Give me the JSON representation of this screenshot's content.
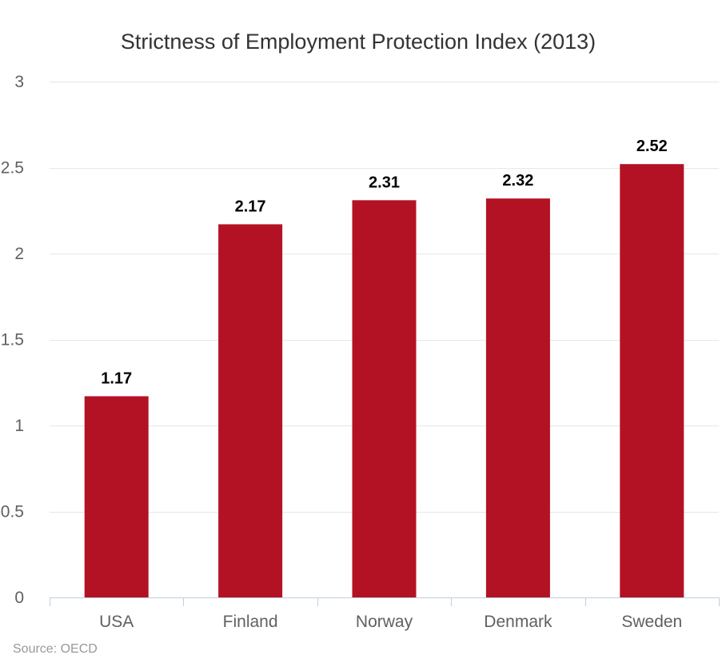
{
  "chart_data": {
    "type": "bar",
    "title": "Strictness of Employment Protection Index (2013)",
    "categories": [
      "USA",
      "Finland",
      "Norway",
      "Denmark",
      "Sweden"
    ],
    "values": [
      1.17,
      2.17,
      2.31,
      2.32,
      2.52
    ],
    "data_labels": [
      "1.17",
      "2.17",
      "2.31",
      "2.32",
      "2.52"
    ],
    "y_ticks": [
      "0",
      "0.5",
      "1",
      "1.5",
      "2",
      "2.5",
      "3"
    ],
    "y_tick_values": [
      0,
      0.5,
      1,
      1.5,
      2,
      2.5,
      3
    ],
    "ylim": [
      0,
      3
    ],
    "xlabel": "",
    "ylabel": "",
    "grid": true,
    "legend": "none",
    "bar_color": "#b31224",
    "credits": "Source: OECD"
  }
}
